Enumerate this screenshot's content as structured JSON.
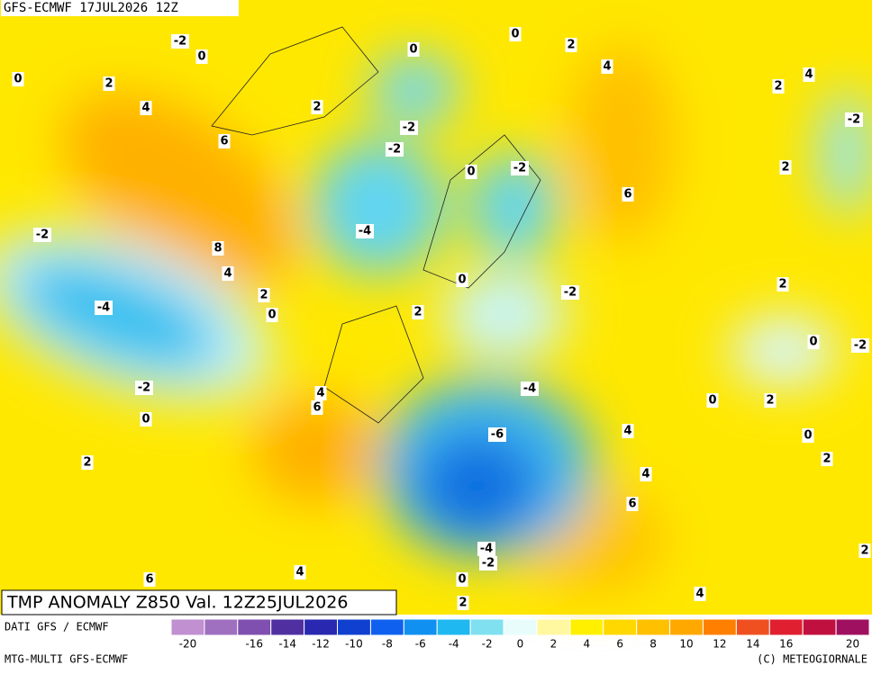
{
  "header": {
    "title": "GFS-ECMWF  17JUL2026 12Z"
  },
  "map": {
    "caption": "TMP ANOMALY Z850 Val. 12Z25JUL2026",
    "contour_labels": [
      "-2",
      "0",
      "0",
      "0",
      "2",
      "0",
      "2",
      "4",
      "4",
      "2",
      "4",
      "2",
      "-2",
      "-2",
      "6",
      "-2",
      "0",
      "-2",
      "2",
      "6",
      "-2",
      "-4",
      "8",
      "4",
      "0",
      "2",
      "2",
      "-2",
      "-4",
      "0",
      "2",
      "0",
      "-2",
      "-2",
      "4",
      "-4",
      "0",
      "2",
      "6",
      "0",
      "4",
      "-6",
      "0",
      "2",
      "2",
      "4",
      "6",
      "-4",
      "2",
      "-2",
      "6",
      "4",
      "0",
      "4",
      "2"
    ]
  },
  "footer": {
    "source": "DATI GFS / ECMWF",
    "model": "MTG-MULTI GFS-ECMWF",
    "credit": "(C) METEOGIORNALE"
  },
  "colorbar": {
    "lim": [
      -21,
      21
    ],
    "colors": [
      "#c090d0",
      "#a070c0",
      "#8050b0",
      "#5030a0",
      "#2828b0",
      "#1040d0",
      "#1060f0",
      "#1090f0",
      "#20b8f0",
      "#80e0f0",
      "#e8fcfc",
      "#fff8a0",
      "#fff000",
      "#ffd800",
      "#ffc000",
      "#ffa800",
      "#ff8000",
      "#f05020",
      "#e02030",
      "#c01040",
      "#a01060"
    ],
    "ticks": [
      -20,
      -16,
      -14,
      -12,
      -10,
      -8,
      -6,
      -4,
      -2,
      0,
      2,
      4,
      6,
      8,
      10,
      12,
      14,
      16,
      20
    ]
  }
}
